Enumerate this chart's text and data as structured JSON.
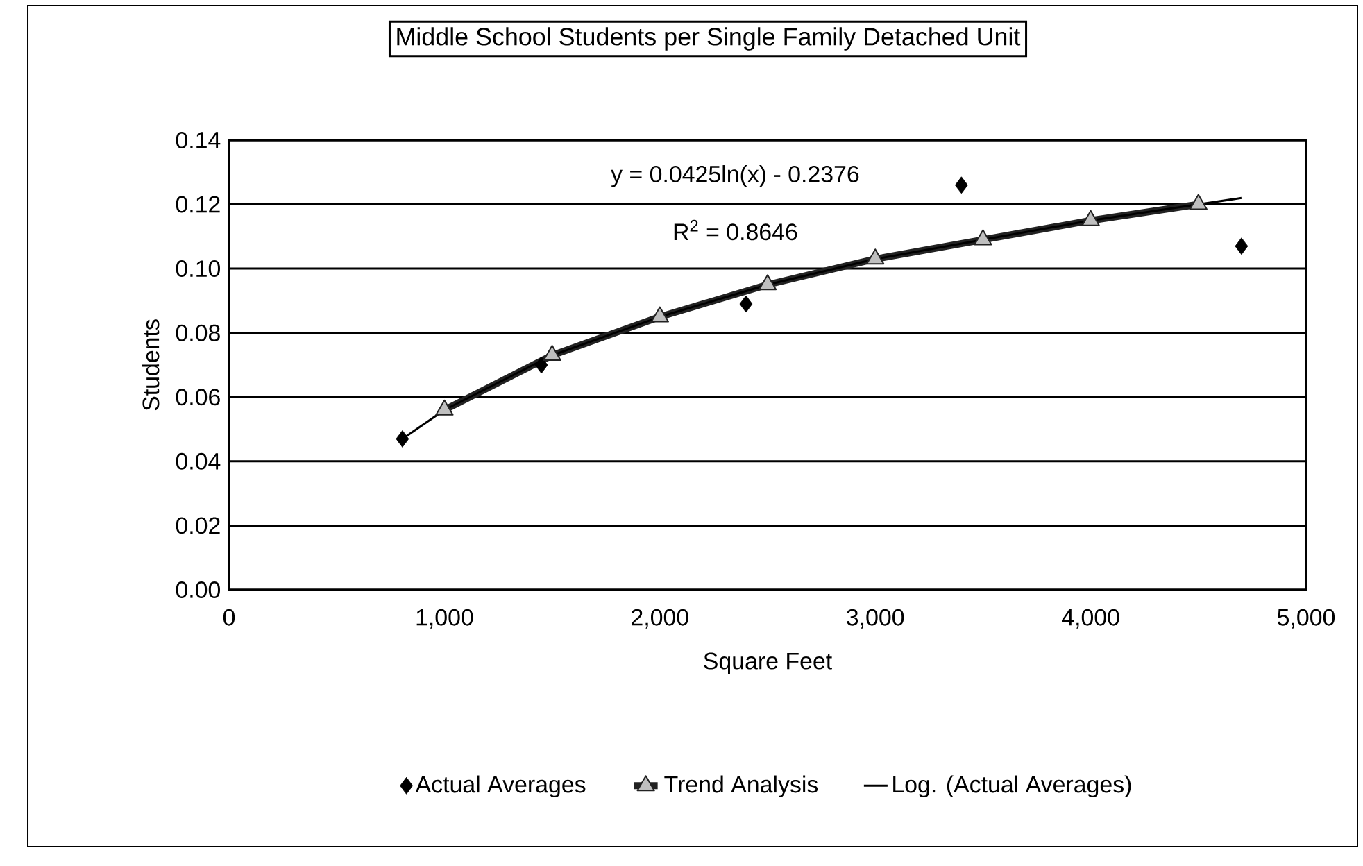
{
  "chart_data": {
    "type": "scatter",
    "title": "Middle School Students per Single Family Detached Unit",
    "xlabel": "Square Feet",
    "ylabel": "Students",
    "xlim": [
      0,
      5000
    ],
    "xticks": [
      0,
      {
        "value": 1000,
        "label": "1,000"
      },
      {
        "value": 2000,
        "label": "2,000"
      },
      {
        "value": 3000,
        "label": "3,000"
      },
      {
        "value": 4000,
        "label": "4,000"
      },
      {
        "value": 5000,
        "label": "5,000"
      }
    ],
    "ylim": [
      0,
      0.14
    ],
    "yticks": [
      {
        "value": 0,
        "label": "0.00"
      },
      {
        "value": 0.02,
        "label": "0.02"
      },
      {
        "value": 0.04,
        "label": "0.04"
      },
      {
        "value": 0.06,
        "label": "0.06"
      },
      {
        "value": 0.08,
        "label": "0.08"
      },
      {
        "value": 0.1,
        "label": "0.10"
      },
      {
        "value": 0.12,
        "label": "0.12"
      },
      {
        "value": 0.14,
        "label": "0.14"
      }
    ],
    "grid": "y",
    "legend": "bottom",
    "annotations": [
      "y = 0.0425ln(x) - 0.2376",
      "R$^{2}$ = 0.8646"
    ],
    "series": [
      {
        "name": "Actual Averages",
        "marker": "diamond",
        "color": "#000000",
        "x": [
          805,
          1450,
          2400,
          3400,
          4700
        ],
        "values": [
          0.047,
          0.07,
          0.089,
          0.126,
          0.107
        ]
      },
      {
        "name": "Trend Analysis",
        "type": "line",
        "marker": "triangle",
        "color": "#222222",
        "x": [
          1000,
          1500,
          2000,
          2500,
          3000,
          3500,
          4000,
          4500
        ],
        "values": [
          0.056,
          0.073,
          0.085,
          0.095,
          0.103,
          0.109,
          0.115,
          0.12
        ]
      },
      {
        "name": "Log. (Actual Averages)",
        "type": "line",
        "marker": "none",
        "color": "#000000",
        "x": [
          805,
          1000,
          1500,
          2000,
          2500,
          3000,
          3500,
          4000,
          4500,
          4700
        ],
        "values": [
          0.047,
          0.056,
          0.073,
          0.085,
          0.095,
          0.103,
          0.109,
          0.115,
          0.12,
          0.122
        ]
      }
    ]
  }
}
